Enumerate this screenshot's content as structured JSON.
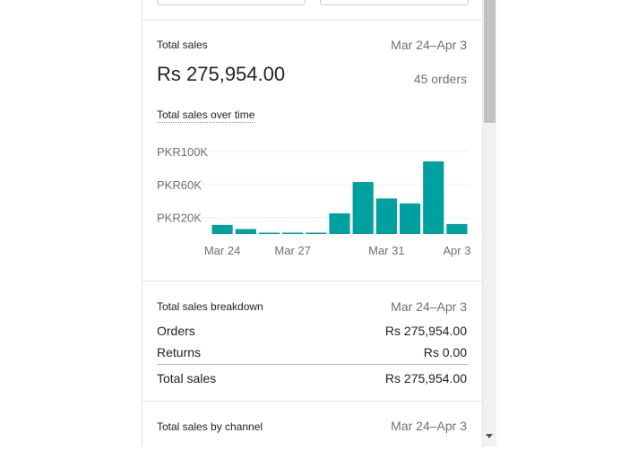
{
  "summary": {
    "label": "Total sales",
    "date_range": "Mar 24–Apr 3",
    "amount": "Rs 275,954.00",
    "orders": "45 orders"
  },
  "chart_title": "Total sales over time",
  "chart_data": {
    "type": "bar",
    "title": "Total sales over time",
    "categories": [
      "Mar 24",
      "Mar 25",
      "Mar 26",
      "Mar 27",
      "Mar 28",
      "Mar 29",
      "Mar 30",
      "Mar 31",
      "Apr 1",
      "Apr 2",
      "Apr 3"
    ],
    "values": [
      11000,
      6000,
      1500,
      1500,
      1500,
      25000,
      63000,
      43000,
      37000,
      88000,
      12000
    ],
    "ytick_labels": [
      "PKR20K",
      "PKR60K",
      "PKR100K"
    ],
    "ytick_values": [
      20000,
      60000,
      100000
    ],
    "xtick_labels": [
      "Mar 24",
      "Mar 27",
      "Mar 31",
      "Apr 3"
    ],
    "xtick_indices": [
      0,
      3,
      7,
      10
    ],
    "ylim": [
      0,
      100000
    ],
    "bar_color": "#00a0a0",
    "grid": true
  },
  "breakdown": {
    "label": "Total sales breakdown",
    "date_range": "Mar 24–Apr 3",
    "rows": [
      {
        "label": "Orders",
        "value": "Rs 275,954.00"
      },
      {
        "label": "Returns",
        "value": "Rs 0.00"
      }
    ],
    "total_label": "Total sales",
    "total_value": "Rs 275,954.00"
  },
  "channel": {
    "label": "Total sales by channel",
    "date_range": "Mar 24–Apr 3"
  }
}
